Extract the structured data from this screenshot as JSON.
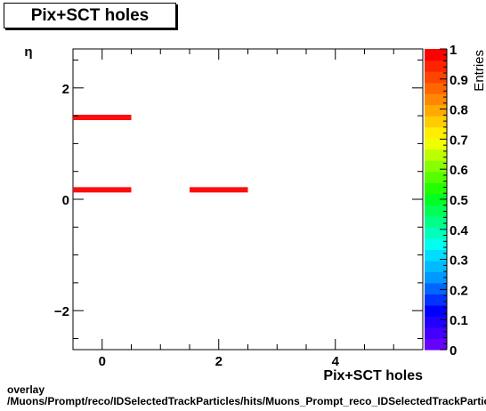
{
  "chart_data": {
    "type": "heatmap",
    "title": "Pix+SCT holes",
    "xlabel": "Pix+SCT holes",
    "ylabel": "η",
    "zlabel": "Entries",
    "xlim": [
      -0.5,
      5.5
    ],
    "ylim": [
      -2.7,
      2.7
    ],
    "zlim": [
      0,
      1
    ],
    "x_ticks": [
      0,
      2,
      4
    ],
    "x_tick_labels": [
      "0",
      "2",
      "4"
    ],
    "y_ticks": [
      -2,
      0,
      2
    ],
    "y_tick_labels": [
      "−2",
      "0",
      "2"
    ],
    "z_ticks": [
      0,
      0.1,
      0.2,
      0.3,
      0.4,
      0.5,
      0.6,
      0.7,
      0.8,
      0.9,
      1
    ],
    "z_tick_labels": [
      "0",
      "0.1",
      "0.2",
      "0.3",
      "0.4",
      "0.5",
      "0.6",
      "0.7",
      "0.8",
      "0.9",
      "1"
    ],
    "cells": [
      {
        "x0": -0.5,
        "x1": 0.5,
        "y": 1.47,
        "value": 1
      },
      {
        "x0": -0.5,
        "x1": 0.5,
        "y": 0.17,
        "value": 1
      },
      {
        "x0": 1.5,
        "x1": 2.5,
        "y": 0.17,
        "value": 1
      }
    ],
    "cell_color": "#ff0d0d",
    "palette": [
      "#6600ff",
      "#4400ff",
      "#2200ff",
      "#0000ff",
      "#0033ff",
      "#0066ff",
      "#0099ff",
      "#00bbff",
      "#00ddff",
      "#00ffee",
      "#00ffbb",
      "#00ff88",
      "#00ff55",
      "#00ff22",
      "#22ff00",
      "#55ff00",
      "#88ff00",
      "#bbff00",
      "#eeff00",
      "#ffee00",
      "#ffcc00",
      "#ffaa00",
      "#ff8800",
      "#ff6600",
      "#ff4400",
      "#ff2200",
      "#ff0000"
    ],
    "grid": false
  },
  "footer": {
    "line1": "overlay",
    "line2": "/Muons/Prompt/reco/IDSelectedTrackParticles/hits/Muons_Prompt_reco_IDSelectedTrackParticles_hits_PixSCTholes_vs_eta"
  }
}
